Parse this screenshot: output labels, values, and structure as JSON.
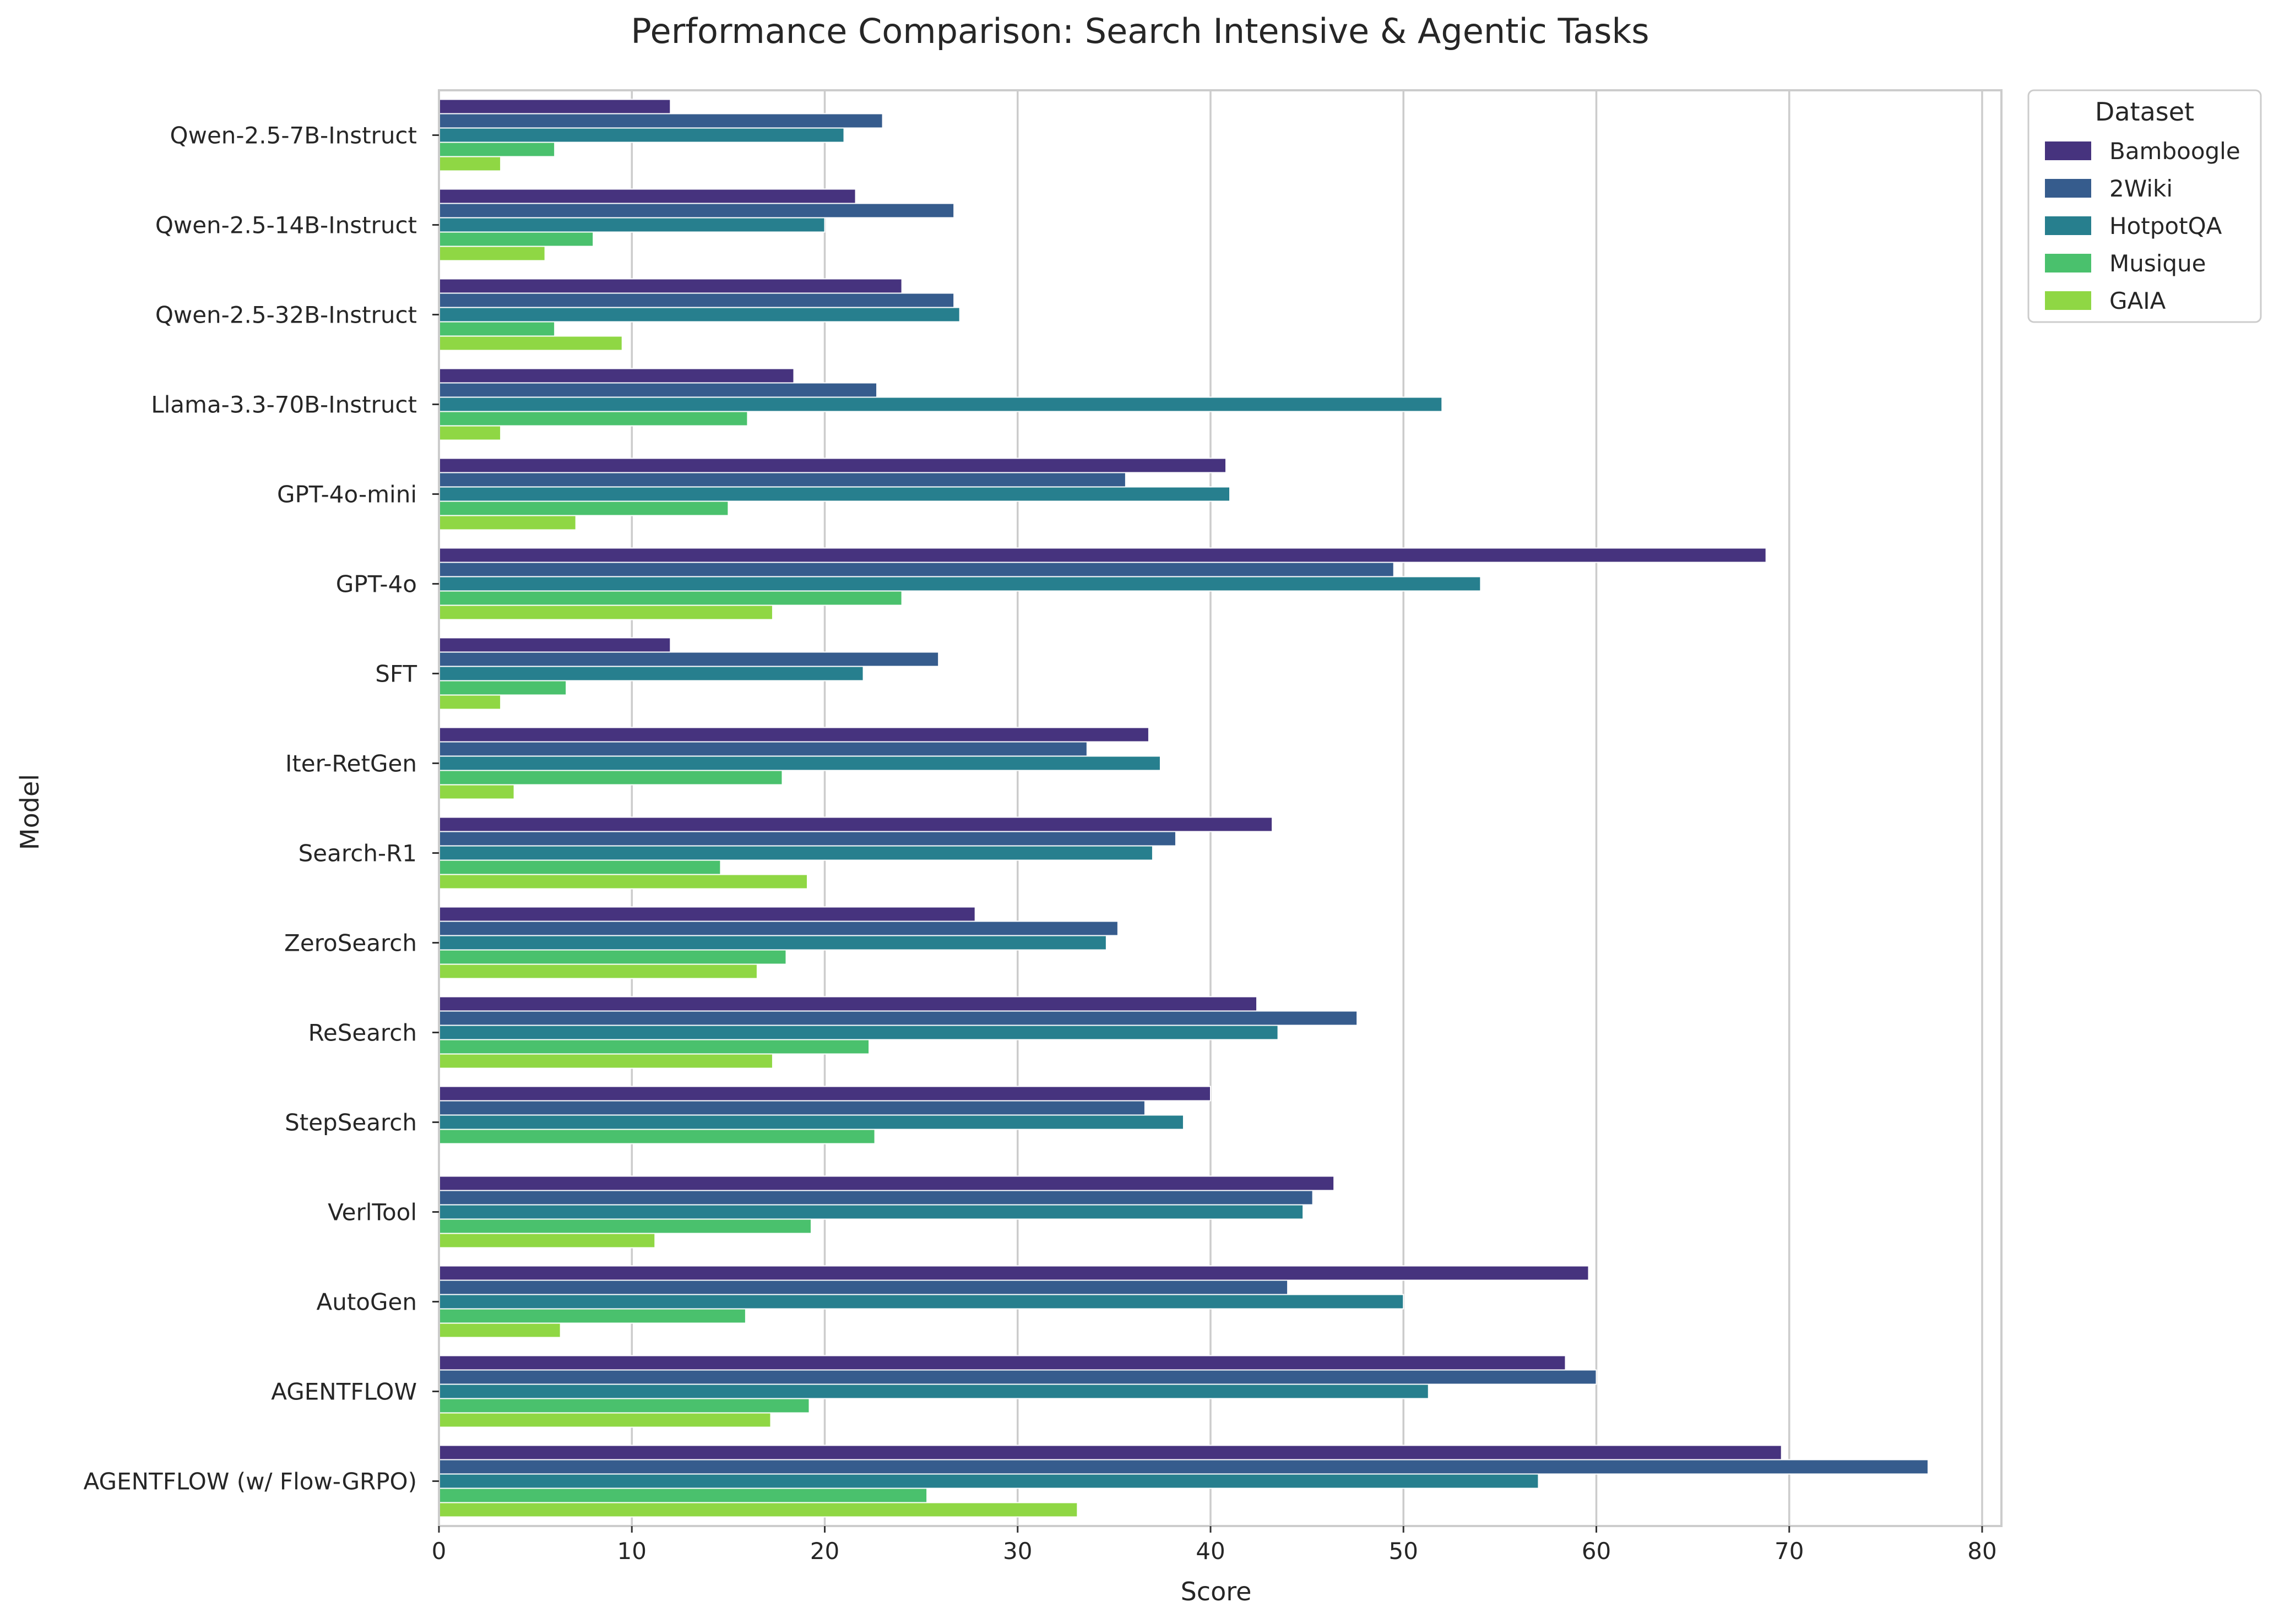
{
  "chart_data": {
    "type": "bar",
    "orientation": "horizontal",
    "title": "Performance Comparison: Search Intensive & Agentic Tasks",
    "xlabel": "Score",
    "ylabel": "Model",
    "xlim": [
      0,
      81
    ],
    "xticks": [
      0,
      10,
      20,
      30,
      40,
      50,
      60,
      70,
      80
    ],
    "grid": "vertical",
    "legend": {
      "title": "Dataset",
      "placement": "outside top-right"
    },
    "categories": [
      "Qwen-2.5-7B-Instruct",
      "Qwen-2.5-14B-Instruct",
      "Qwen-2.5-32B-Instruct",
      "Llama-3.3-70B-Instruct",
      "GPT-4o-mini",
      "GPT-4o",
      "SFT",
      "Iter-RetGen",
      "Search-R1",
      "ZeroSearch",
      "ReSearch",
      "StepSearch",
      "VerlTool",
      "AutoGen",
      "AGENTFLOW",
      "AGENTFLOW (w/ Flow-GRPO)"
    ],
    "series": [
      {
        "name": "Bamboogle",
        "color": "#46337e",
        "values": [
          12.0,
          21.6,
          24.0,
          18.4,
          40.8,
          68.8,
          12.0,
          36.8,
          43.2,
          27.8,
          42.4,
          40.0,
          46.4,
          59.6,
          58.4,
          69.6
        ]
      },
      {
        "name": "2Wiki",
        "color": "#365c8d",
        "values": [
          23.0,
          26.7,
          26.7,
          22.7,
          35.6,
          49.5,
          25.9,
          33.6,
          38.2,
          35.2,
          47.6,
          36.6,
          45.3,
          44.0,
          60.0,
          77.2
        ]
      },
      {
        "name": "HotpotQA",
        "color": "#277f8e",
        "values": [
          21.0,
          20.0,
          27.0,
          52.0,
          41.0,
          54.0,
          22.0,
          37.4,
          37.0,
          34.6,
          43.5,
          38.6,
          44.8,
          50.0,
          51.3,
          57.0
        ]
      },
      {
        "name": "Musique",
        "color": "#4ac16d",
        "values": [
          6.0,
          8.0,
          6.0,
          16.0,
          15.0,
          24.0,
          6.6,
          17.8,
          14.6,
          18.0,
          22.3,
          22.6,
          19.3,
          15.9,
          19.2,
          25.3
        ]
      },
      {
        "name": "GAIA",
        "color": "#8fd744",
        "values": [
          3.2,
          5.5,
          9.5,
          3.2,
          7.1,
          17.3,
          3.2,
          3.9,
          19.1,
          16.5,
          17.3,
          0,
          11.2,
          6.3,
          17.2,
          33.1
        ]
      }
    ]
  }
}
